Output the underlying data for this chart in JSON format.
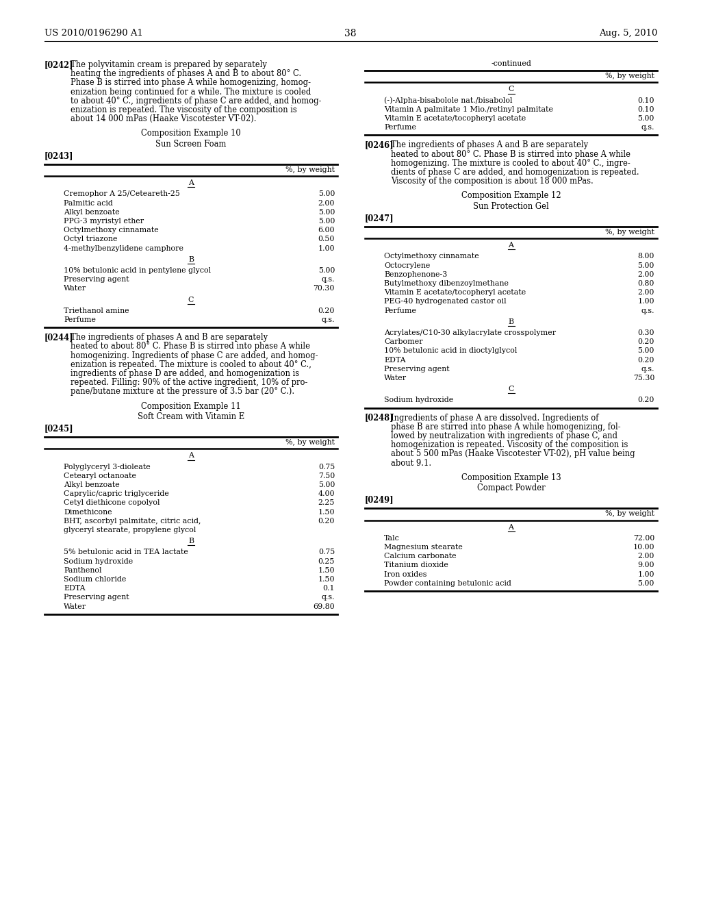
{
  "page_number": "38",
  "header_left": "US 2010/0196290 A1",
  "header_right": "Aug. 5, 2010",
  "background_color": "#ffffff",
  "text_color": "#000000",
  "left_column": {
    "paragraphs": [
      {
        "type": "body",
        "tag": "[0242]",
        "text": "The polyvitamin cream is prepared by separately\nheating the ingredients of phases A and B to about 80° C.\nPhase B is stirred into phase A while homogenizing, homog-\nenization being continued for a while. The mixture is cooled\nto about 40° C., ingredients of phase C are added, and homog-\nenization is repeated. The viscosity of the composition is\nabout 14 000 mPas (Haake Viscotester VT-02)."
      },
      {
        "type": "centered",
        "text": "Composition Example 10"
      },
      {
        "type": "centered",
        "text": "Sun Screen Foam"
      },
      {
        "type": "tag_only",
        "tag": "[0243]"
      },
      {
        "type": "table",
        "header": "%, by weight",
        "sections": [
          {
            "label": "A",
            "rows": [
              [
                "Cremophor A 25/Ceteareth-25",
                "5.00"
              ],
              [
                "Palmitic acid",
                "2.00"
              ],
              [
                "Alkyl benzoate",
                "5.00"
              ],
              [
                "PPG-3 myristyl ether",
                "5.00"
              ],
              [
                "Octylmethoxy cinnamate",
                "6.00"
              ],
              [
                "Octyl triazone",
                "0.50"
              ],
              [
                "4-methylbenzylidene camphore",
                "1.00"
              ]
            ]
          },
          {
            "label": "B",
            "rows": [
              [
                "10% betulonic acid in pentylene glycol",
                "5.00"
              ],
              [
                "Preserving agent",
                "q.s."
              ],
              [
                "Water",
                "70.30"
              ]
            ]
          },
          {
            "label": "C",
            "rows": [
              [
                "Triethanol amine",
                "0.20"
              ],
              [
                "Perfume",
                "q.s."
              ]
            ]
          }
        ]
      },
      {
        "type": "body",
        "tag": "[0244]",
        "text": "The ingredients of phases A and B are separately\nheated to about 80° C. Phase B is stirred into phase A while\nhomogenizing. Ingredients of phase C are added, and homog-\nenization is repeated. The mixture is cooled to about 40° C.,\ningredients of phase D are added, and homogenization is\nrepeated. Filling: 90% of the active ingredient, 10% of pro-\npane/butane mixture at the pressure of 3.5 bar (20° C.)."
      },
      {
        "type": "centered",
        "text": "Composition Example 11"
      },
      {
        "type": "centered",
        "text": "Soft Cream with Vitamin E"
      },
      {
        "type": "tag_only",
        "tag": "[0245]"
      },
      {
        "type": "table",
        "header": "%, by weight",
        "sections": [
          {
            "label": "A",
            "rows": [
              [
                "Polyglyceryl 3-dioleate",
                "0.75"
              ],
              [
                "Cetearyl octanoate",
                "7.50"
              ],
              [
                "Alkyl benzoate",
                "5.00"
              ],
              [
                "Caprylic/capric triglyceride",
                "4.00"
              ],
              [
                "Cetyl diethicone copolyol",
                "2.25"
              ],
              [
                "Dimethicone",
                "1.50"
              ],
              [
                "BHT, ascorbyl palmitate, citric acid,",
                "0.20"
              ],
              [
                "glyceryl stearate, propylene glycol",
                ""
              ]
            ]
          },
          {
            "label": "B",
            "rows": [
              [
                "5% betulonic acid in TEA lactate",
                "0.75"
              ],
              [
                "Sodium hydroxide",
                "0.25"
              ],
              [
                "Panthenol",
                "1.50"
              ],
              [
                "Sodium chloride",
                "1.50"
              ],
              [
                "EDTA",
                "0.1"
              ],
              [
                "Preserving agent",
                "q.s."
              ],
              [
                "Water",
                "69.80"
              ]
            ]
          }
        ]
      }
    ]
  },
  "right_column": {
    "paragraphs": [
      {
        "type": "continued_table",
        "header": "-continued",
        "col_header": "%, by weight",
        "sections": [
          {
            "label": "C",
            "rows": [
              [
                "(-)-Alpha-bisabolole nat./bisabolol",
                "0.10"
              ],
              [
                "Vitamin A palmitate 1 Mio./retinyl palmitate",
                "0.10"
              ],
              [
                "Vitamin E acetate/tocopheryl acetate",
                "5.00"
              ],
              [
                "Perfume",
                "q.s."
              ]
            ]
          }
        ]
      },
      {
        "type": "body",
        "tag": "[0246]",
        "text": "The ingredients of phases A and B are separately\nheated to about 80° C. Phase B is stirred into phase A while\nhomogenizing. The mixture is cooled to about 40° C., ingre-\ndients of phase C are added, and homogenization is repeated.\nViscosity of the composition is about 18 000 mPas."
      },
      {
        "type": "centered",
        "text": "Composition Example 12"
      },
      {
        "type": "centered",
        "text": "Sun Protection Gel"
      },
      {
        "type": "tag_only",
        "tag": "[0247]"
      },
      {
        "type": "table",
        "header": "%, by weight",
        "sections": [
          {
            "label": "A",
            "rows": [
              [
                "Octylmethoxy cinnamate",
                "8.00"
              ],
              [
                "Octocrylene",
                "5.00"
              ],
              [
                "Benzophenone-3",
                "2.00"
              ],
              [
                "Butylmethoxy dibenzoylmethane",
                "0.80"
              ],
              [
                "Vitamin E acetate/tocopheryl acetate",
                "2.00"
              ],
              [
                "PEG-40 hydrogenated castor oil",
                "1.00"
              ],
              [
                "Perfume",
                "q.s."
              ]
            ]
          },
          {
            "label": "B",
            "rows": [
              [
                "Acrylates/C10-30 alkylacrylate crosspolymer",
                "0.30"
              ],
              [
                "Carbomer",
                "0.20"
              ],
              [
                "10% betulonic acid in dioctylglycol",
                "5.00"
              ],
              [
                "EDTA",
                "0.20"
              ],
              [
                "Preserving agent",
                "q.s."
              ],
              [
                "Water",
                "75.30"
              ]
            ]
          },
          {
            "label": "C",
            "rows": [
              [
                "Sodium hydroxide",
                "0.20"
              ]
            ]
          }
        ]
      },
      {
        "type": "body",
        "tag": "[0248]",
        "text": "Ingredients of phase A are dissolved. Ingredients of\nphase B are stirred into phase A while homogenizing, fol-\nlowed by neutralization with ingredients of phase C, and\nhomogenization is repeated. Viscosity of the composition is\nabout 5 500 mPas (Haake Viscotester VT-02), pH value being\nabout 9.1."
      },
      {
        "type": "centered",
        "text": "Composition Example 13"
      },
      {
        "type": "centered",
        "text": "Compact Powder"
      },
      {
        "type": "tag_only",
        "tag": "[0249]"
      },
      {
        "type": "table",
        "header": "%, by weight",
        "sections": [
          {
            "label": "A",
            "rows": [
              [
                "Talc",
                "72.00"
              ],
              [
                "Magnesium stearate",
                "10.00"
              ],
              [
                "Calcium carbonate",
                "2.00"
              ],
              [
                "Titanium dioxide",
                "9.00"
              ],
              [
                "Iron oxides",
                "1.00"
              ],
              [
                "Powder containing betulonic acid",
                "5.00"
              ]
            ]
          }
        ]
      }
    ]
  }
}
